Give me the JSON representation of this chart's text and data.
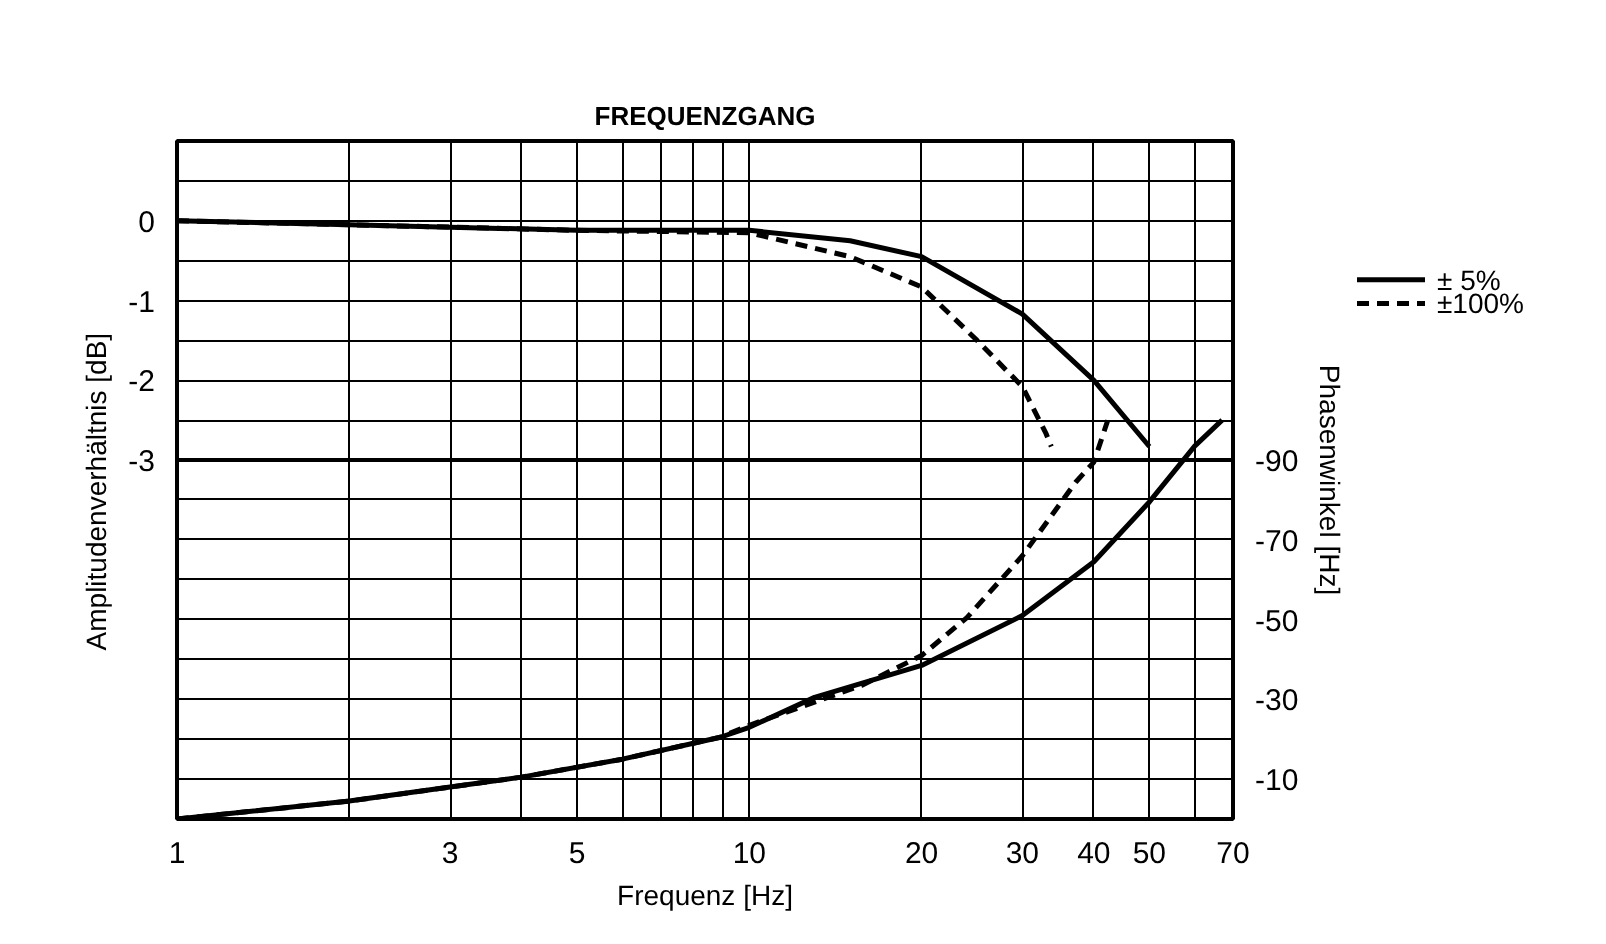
{
  "chart_data": {
    "type": "line",
    "title": "FREQUENZGANG",
    "xlabel": "Frequenz [Hz]",
    "ylabel": "Amplitudenverhältnis    [dB]",
    "y2label": "Phasenwinkel [Hz]",
    "log": "x",
    "grid": true,
    "legend": "top right",
    "marker": "none",
    "xlim": [
      1,
      70
    ],
    "xticks": [
      1,
      {
        "value": 2,
        "label": null
      },
      3,
      {
        "value": 4,
        "label": null
      },
      5,
      {
        "value": 6,
        "label": null
      },
      {
        "value": 7,
        "label": null
      },
      {
        "value": 8,
        "label": null
      },
      {
        "value": 9,
        "label": null
      },
      10,
      20,
      30,
      40,
      50,
      {
        "value": 60,
        "label": null
      },
      70
    ],
    "ylim": [
      -7.5,
      1
    ],
    "yticks": [
      {
        "value": 1,
        "label": null
      },
      {
        "value": 0.5,
        "label": null
      },
      0,
      {
        "value": -0.5,
        "label": null
      },
      -1,
      {
        "value": -1.5,
        "label": null
      },
      -2,
      {
        "value": -2.5,
        "label": null
      },
      -3,
      {
        "value": -3.5,
        "label": null
      },
      {
        "value": -4,
        "label": null
      },
      {
        "value": -4.5,
        "label": null
      },
      {
        "value": -5,
        "label": null
      },
      {
        "value": -5.5,
        "label": null
      },
      {
        "value": -6,
        "label": null
      },
      {
        "value": -6.5,
        "label": null
      },
      {
        "value": -7,
        "label": null
      },
      {
        "value": -7.5,
        "label": null
      }
    ],
    "y2lim": [
      0,
      -170
    ],
    "y2ticks": [
      -90,
      -70,
      -50,
      -30,
      -10
    ],
    "ref_lines": [
      {
        "axis": "y",
        "value": -3,
        "label": null,
        "color": "#000000",
        "line_style": "solid"
      }
    ],
    "series": [
      {
        "name": "±    5%",
        "color": "#000000",
        "line_style": "solid",
        "x": [
          1,
          2,
          3,
          5,
          10,
          15,
          20,
          30,
          40,
          50
        ],
        "values": [
          0,
          -0.05,
          -0.08,
          -0.12,
          -0.12,
          -0.25,
          -0.45,
          -1.17,
          -2.0,
          -2.83
        ]
      },
      {
        "name": "±100%",
        "color": "#000000",
        "line_style": "dashed",
        "x": [
          1,
          2,
          3,
          5,
          10,
          15,
          20,
          25,
          30,
          33,
          33.7
        ],
        "values": [
          0,
          -0.05,
          -0.08,
          -0.12,
          -0.15,
          -0.45,
          -0.83,
          -1.5,
          -2.08,
          -2.67,
          -2.83
        ]
      },
      {
        "color": "#000000",
        "line_style": "solid",
        "axis": "y2",
        "x": [
          1,
          2,
          3,
          4,
          6,
          8.9,
          10,
          13,
          20,
          30,
          40,
          50,
          60,
          67
        ],
        "values": [
          0,
          -4.5,
          -8,
          -10.5,
          -15,
          -20.5,
          -23,
          -30.5,
          -38.5,
          -51,
          -64.5,
          -79.5,
          -93.5,
          -100
        ]
      },
      {
        "color": "#000000",
        "line_style": "dashed",
        "axis": "y2",
        "x": [
          1,
          2,
          3,
          4,
          6,
          8.9,
          10,
          15.7,
          20,
          24,
          30,
          37.2,
          40,
          42.3
        ],
        "values": [
          0,
          -4.5,
          -8,
          -10.5,
          -15,
          -20.5,
          -23.5,
          -33.5,
          -41,
          -50.5,
          -66,
          -84.5,
          -89.5,
          -100
        ]
      }
    ]
  }
}
